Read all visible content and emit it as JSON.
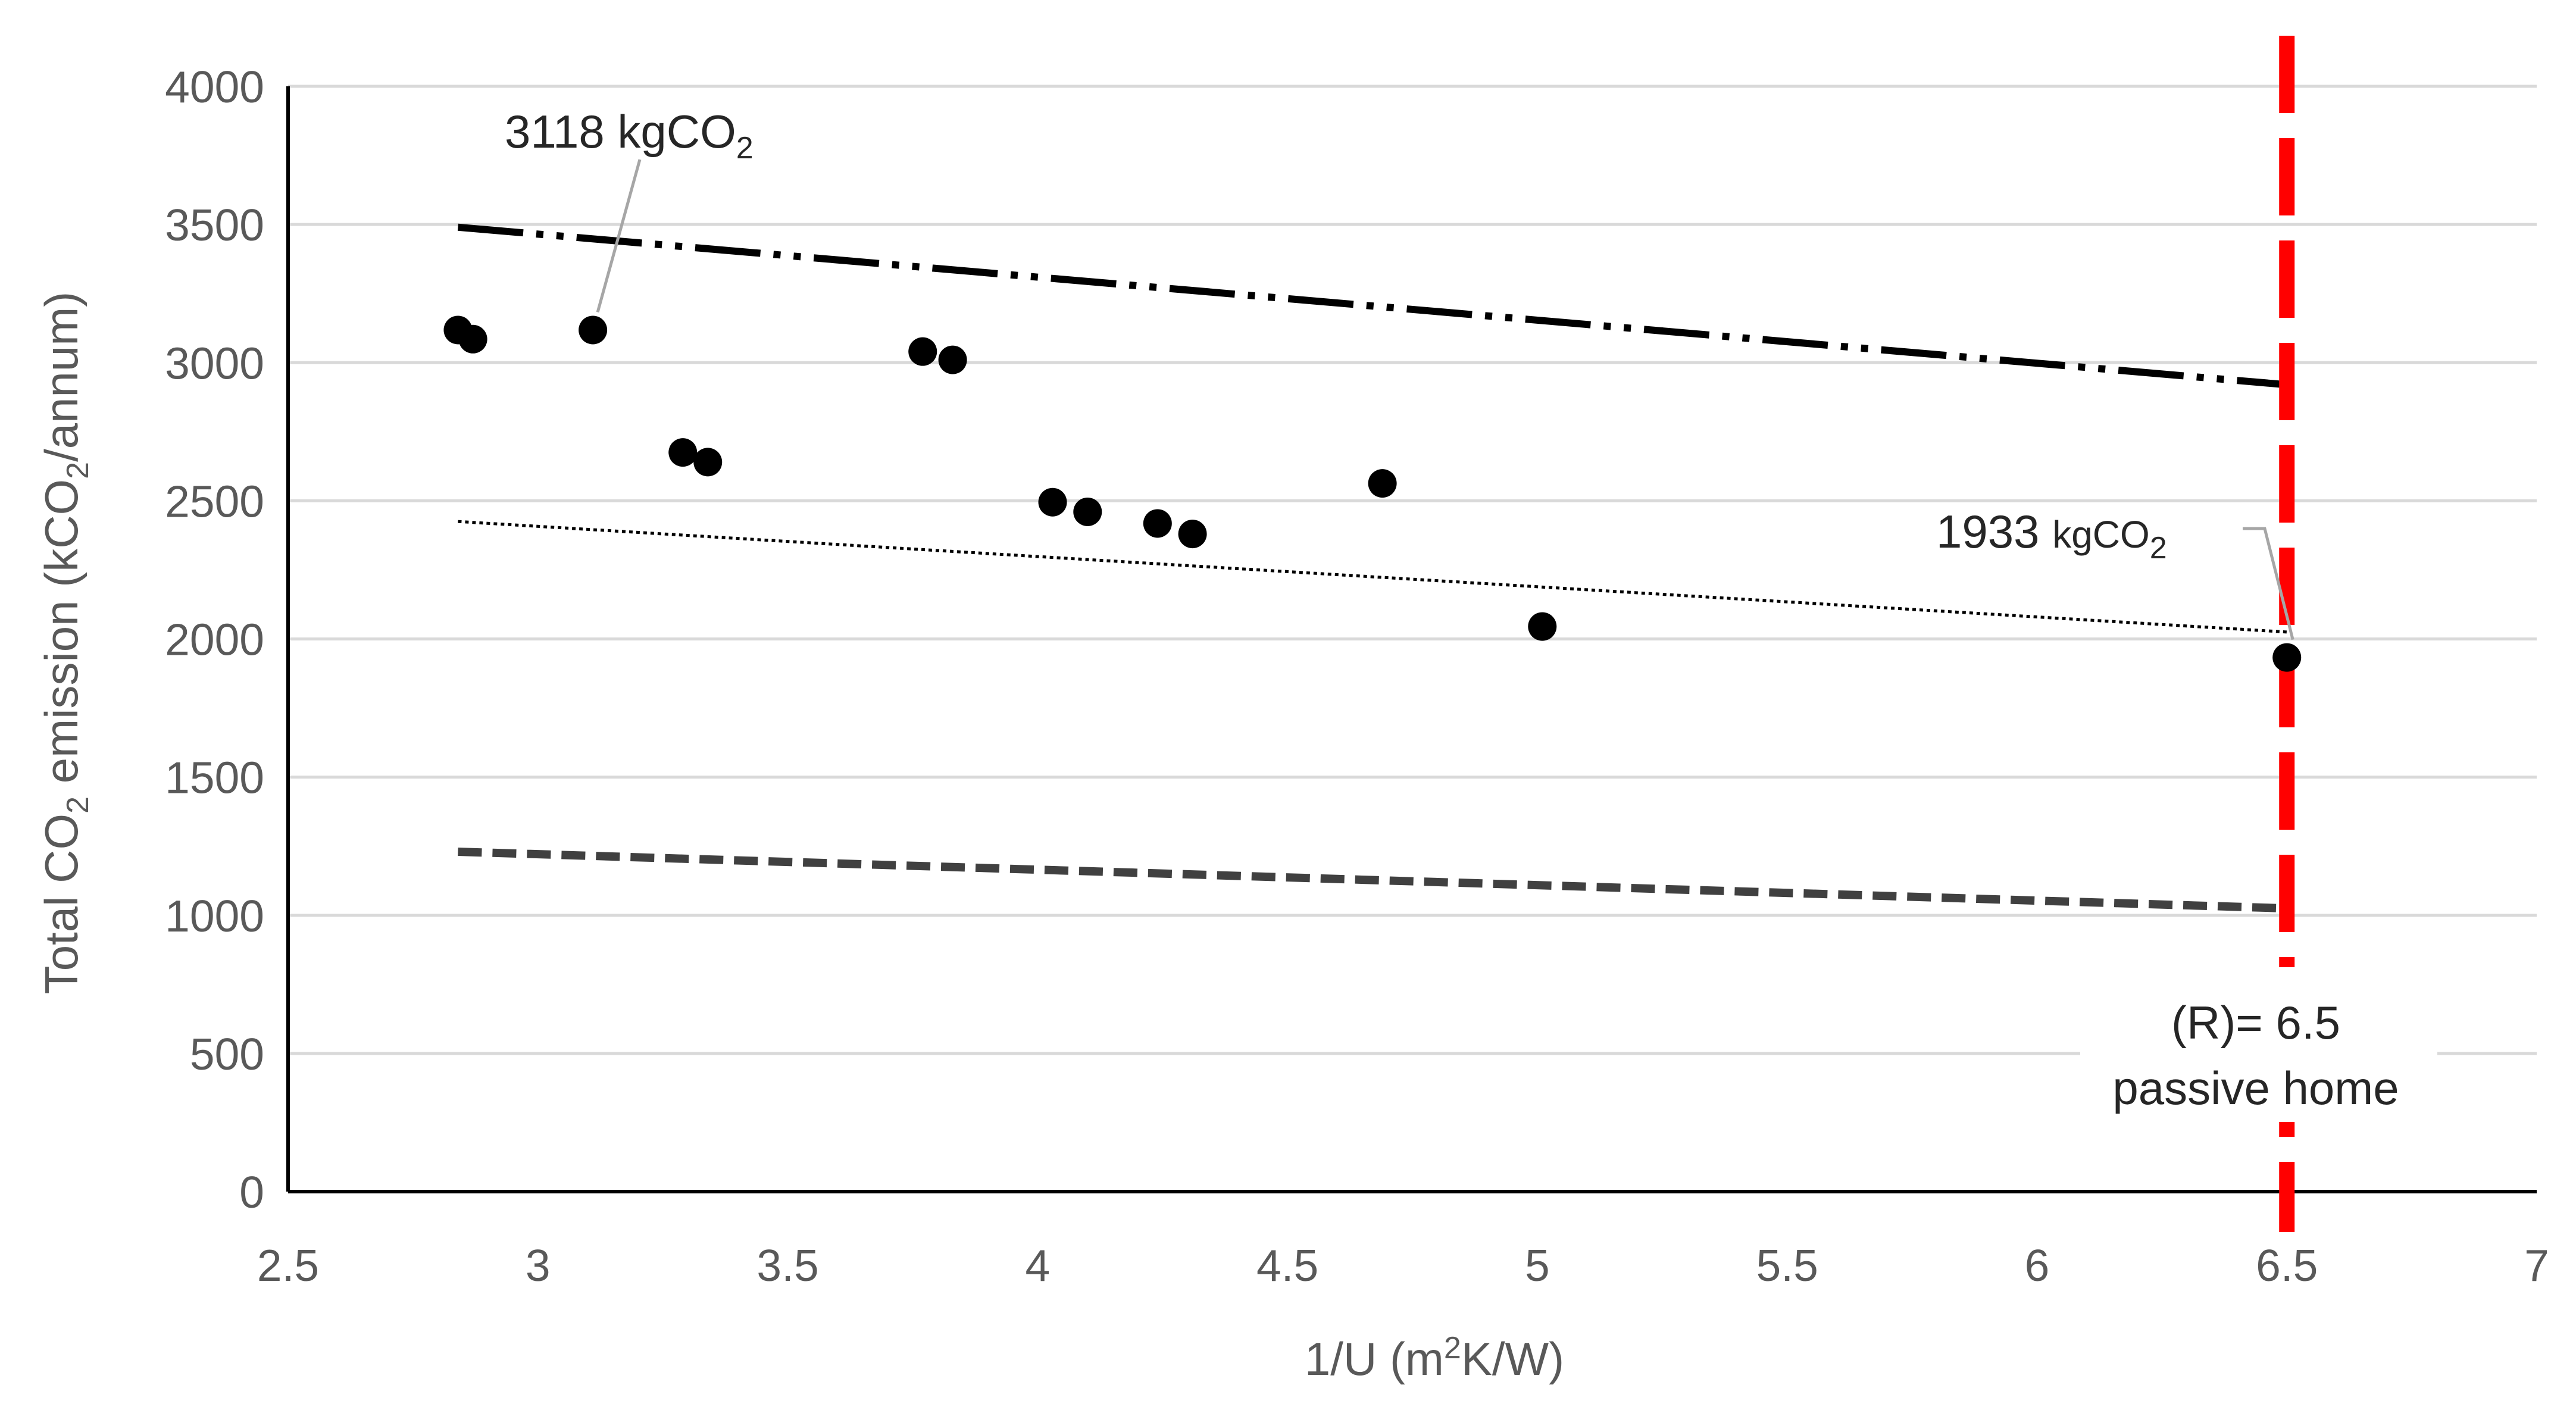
{
  "chart_data": {
    "type": "scatter",
    "title": "",
    "xlabel": "1/U (m²K/W)",
    "xlabel_parts": {
      "pre": "1/U (m",
      "sup": "2",
      "post": "K/W)"
    },
    "ylabel": "Total CO₂ emission (kCO₂/annum)",
    "ylabel_parts": {
      "pre": "Total CO",
      "sub1": "2",
      "mid": " emission (kCO",
      "sub2": "2",
      "post": "/annum)"
    },
    "xlim": [
      2.5,
      7
    ],
    "ylim": [
      0,
      4000
    ],
    "x_ticks": [
      2.5,
      3,
      3.5,
      4,
      4.5,
      5,
      5.5,
      6,
      6.5,
      7
    ],
    "x_tick_labels": [
      "2.5",
      "3",
      "3.5",
      "4",
      "4.5",
      "5",
      "5.5",
      "6",
      "6.5",
      "7"
    ],
    "y_ticks": [
      0,
      500,
      1000,
      1500,
      2000,
      2500,
      3000,
      3500,
      4000
    ],
    "y_tick_labels": [
      "0",
      "500",
      "1000",
      "1500",
      "2000",
      "2500",
      "3000",
      "3500",
      "4000"
    ],
    "grid": "horizontal",
    "series": [
      {
        "name": "Total CO2 emission",
        "x": [
          2.84,
          2.87,
          3.11,
          3.29,
          3.34,
          3.77,
          3.83,
          4.03,
          4.1,
          4.24,
          4.31,
          4.69,
          5.01,
          6.5
        ],
        "y": [
          3118,
          3085,
          3118,
          2675,
          2640,
          3040,
          3010,
          2495,
          2460,
          2418,
          2380,
          2563,
          2045,
          1933
        ],
        "color": "#000000"
      }
    ],
    "lines": [
      {
        "name": "upper dash-dot-dot line",
        "x": [
          2.84,
          6.5
        ],
        "y": [
          3490,
          2920
        ],
        "style": "dash-dot-dot",
        "color": "#000000"
      },
      {
        "name": "dotted trendline",
        "x": [
          2.84,
          6.5
        ],
        "y": [
          2425,
          2025
        ],
        "style": "dotted",
        "color": "#000000"
      },
      {
        "name": "lower dashed line",
        "x": [
          2.84,
          6.5
        ],
        "y": [
          1230,
          1025
        ],
        "style": "dashed",
        "color": "#404040"
      }
    ],
    "vertical_line": {
      "x": 6.5,
      "color": "#ff0000",
      "style": "dashed",
      "label_line1": "(R)= 6.5",
      "label_line2": "passive home"
    },
    "annotations": [
      {
        "value": "3118",
        "unit_pre": "kgCO",
        "unit_sub": "2",
        "point_x": 3.11,
        "point_y": 3118
      },
      {
        "value": "1933",
        "unit_pre": "kgCO",
        "unit_sub": "2",
        "point_x": 6.5,
        "point_y": 1933
      }
    ]
  }
}
